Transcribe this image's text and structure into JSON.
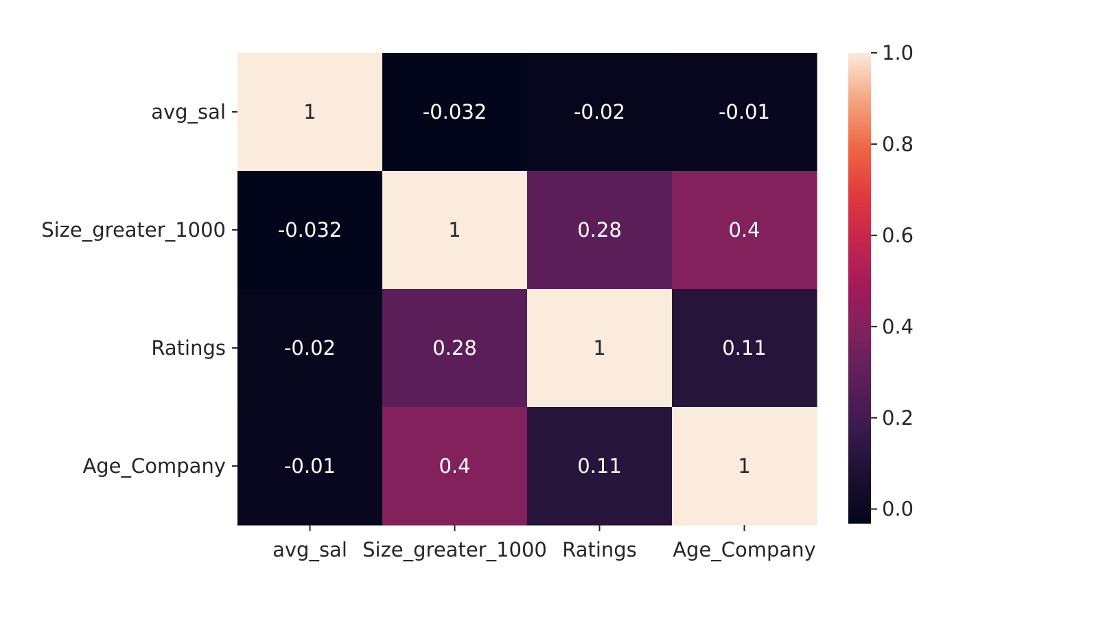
{
  "chart_data": {
    "type": "heatmap",
    "title": "",
    "xlabel": "",
    "ylabel": "",
    "x_categories": [
      "avg_sal",
      "Size_greater_1000",
      "Ratings",
      "Age_Company"
    ],
    "y_categories": [
      "avg_sal",
      "Size_greater_1000",
      "Ratings",
      "Age_Company"
    ],
    "values": [
      [
        1,
        -0.032,
        -0.02,
        -0.01
      ],
      [
        -0.032,
        1,
        0.28,
        0.4
      ],
      [
        -0.02,
        0.28,
        1,
        0.11
      ],
      [
        -0.01,
        0.4,
        0.11,
        1
      ]
    ],
    "annotations": [
      [
        "1",
        "-0.032",
        "-0.02",
        "-0.01"
      ],
      [
        "-0.032",
        "1",
        "0.28",
        "0.4"
      ],
      [
        "-0.02",
        "0.28",
        "1",
        "0.11"
      ],
      [
        "-0.01",
        "0.4",
        "0.11",
        "1"
      ]
    ],
    "colormap": "rocket",
    "colorbar": {
      "range": [
        -0.032,
        1.0
      ],
      "ticks": [
        0.0,
        0.2,
        0.4,
        0.6,
        0.8,
        1.0
      ],
      "tick_labels": [
        "0.0",
        "0.2",
        "0.4",
        "0.6",
        "0.8",
        "1.0"
      ]
    }
  }
}
